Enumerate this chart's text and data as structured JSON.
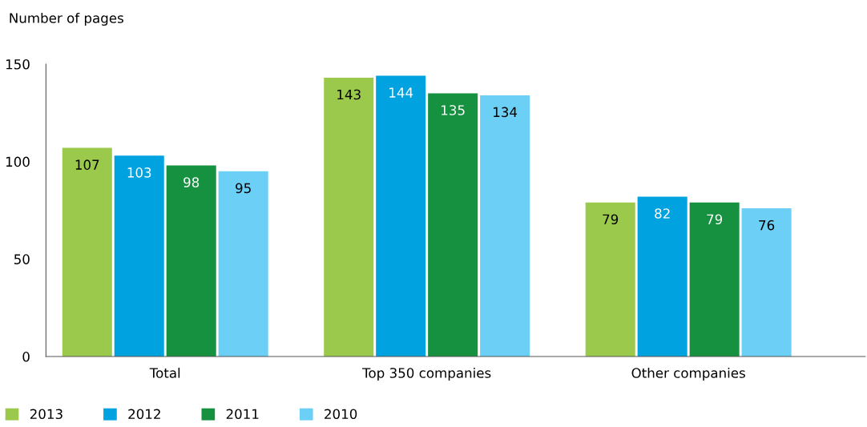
{
  "chart_data": {
    "type": "bar",
    "ylabel": "Number of pages",
    "categories": [
      "Total",
      "Top 350 companies",
      "Other companies"
    ],
    "series": [
      {
        "name": "2013",
        "color": "#9bc94b",
        "values": [
          107,
          143,
          79
        ]
      },
      {
        "name": "2012",
        "color": "#00a3e0",
        "values": [
          103,
          144,
          82
        ]
      },
      {
        "name": "2011",
        "color": "#159140",
        "values": [
          98,
          135,
          79
        ]
      },
      {
        "name": "2010",
        "color": "#6bcff6",
        "values": [
          95,
          134,
          76
        ]
      }
    ],
    "ylim": [
      0,
      150
    ],
    "yticks": [
      0,
      50,
      100,
      150
    ],
    "data_labels": true,
    "grid": false,
    "legend": "bottom"
  }
}
